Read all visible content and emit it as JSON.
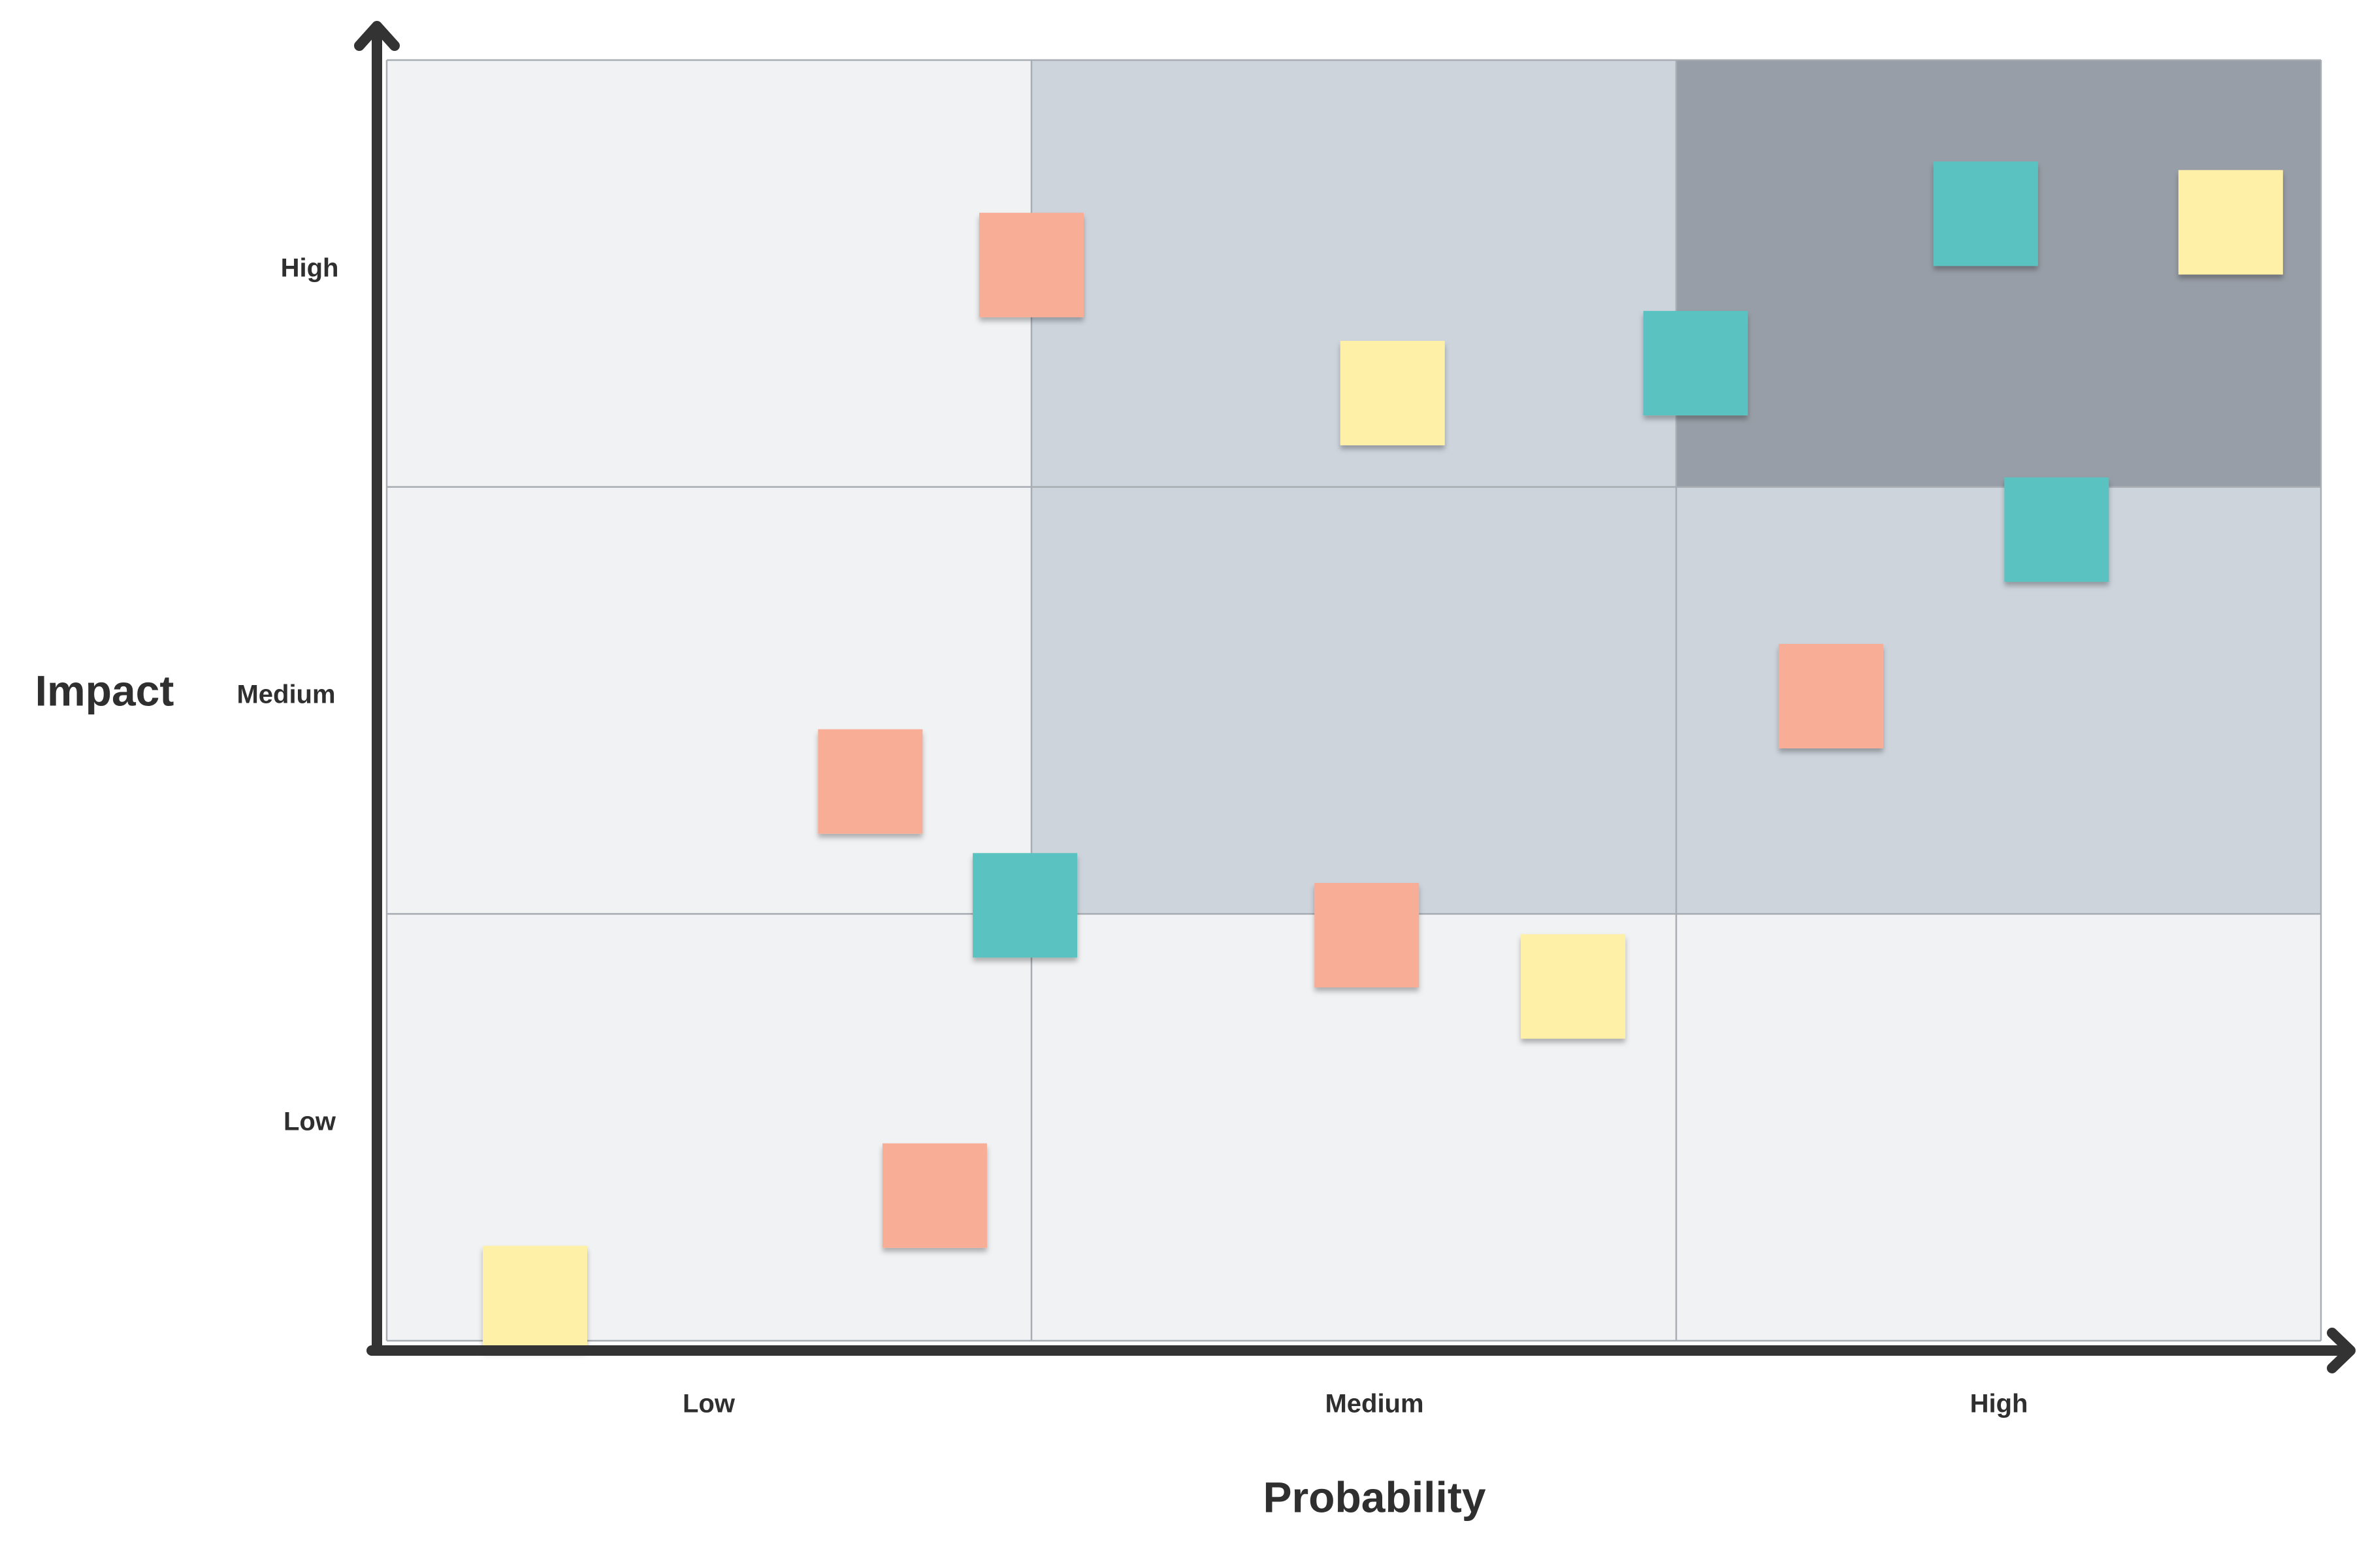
{
  "axes": {
    "x_title": "Probability",
    "y_title": "Impact",
    "x_ticks": [
      "Low",
      "Medium",
      "High"
    ],
    "y_ticks": [
      "Low",
      "Medium",
      "High"
    ]
  },
  "zone_colors": {
    "low": "#f1f2f3",
    "medium": "#cdd4dc",
    "high": "#989ea7",
    "axis": "#333333",
    "grid": "#a7adb3"
  },
  "grid": {
    "levels": [
      "Low",
      "Medium",
      "High"
    ],
    "zones": [
      [
        "low",
        "low",
        "low"
      ],
      [
        "low",
        "medium",
        "medium"
      ],
      [
        "low",
        "medium",
        "high"
      ]
    ]
  },
  "note_colors": {
    "salmon": "#f8ad97",
    "teal": "#5ac3c1",
    "yellow": "#fff0a8"
  },
  "notes": [
    {
      "color": "salmon",
      "probability": 1.0,
      "impact": 2.52
    },
    {
      "color": "yellow",
      "probability": 1.56,
      "impact": 2.22
    },
    {
      "color": "teal",
      "probability": 2.03,
      "impact": 2.29
    },
    {
      "color": "teal",
      "probability": 2.48,
      "impact": 2.64
    },
    {
      "color": "yellow",
      "probability": 2.86,
      "impact": 2.62
    },
    {
      "color": "teal",
      "probability": 2.59,
      "impact": 1.9
    },
    {
      "color": "salmon",
      "probability": 2.24,
      "impact": 1.51
    },
    {
      "color": "salmon",
      "probability": 0.75,
      "impact": 1.31
    },
    {
      "color": "teal",
      "probability": 0.99,
      "impact": 1.02
    },
    {
      "color": "salmon",
      "probability": 1.52,
      "impact": 0.95
    },
    {
      "color": "yellow",
      "probability": 1.84,
      "impact": 0.83
    },
    {
      "color": "salmon",
      "probability": 0.85,
      "impact": 0.34
    },
    {
      "color": "yellow",
      "probability": 0.23,
      "impact": 0.1
    }
  ]
}
